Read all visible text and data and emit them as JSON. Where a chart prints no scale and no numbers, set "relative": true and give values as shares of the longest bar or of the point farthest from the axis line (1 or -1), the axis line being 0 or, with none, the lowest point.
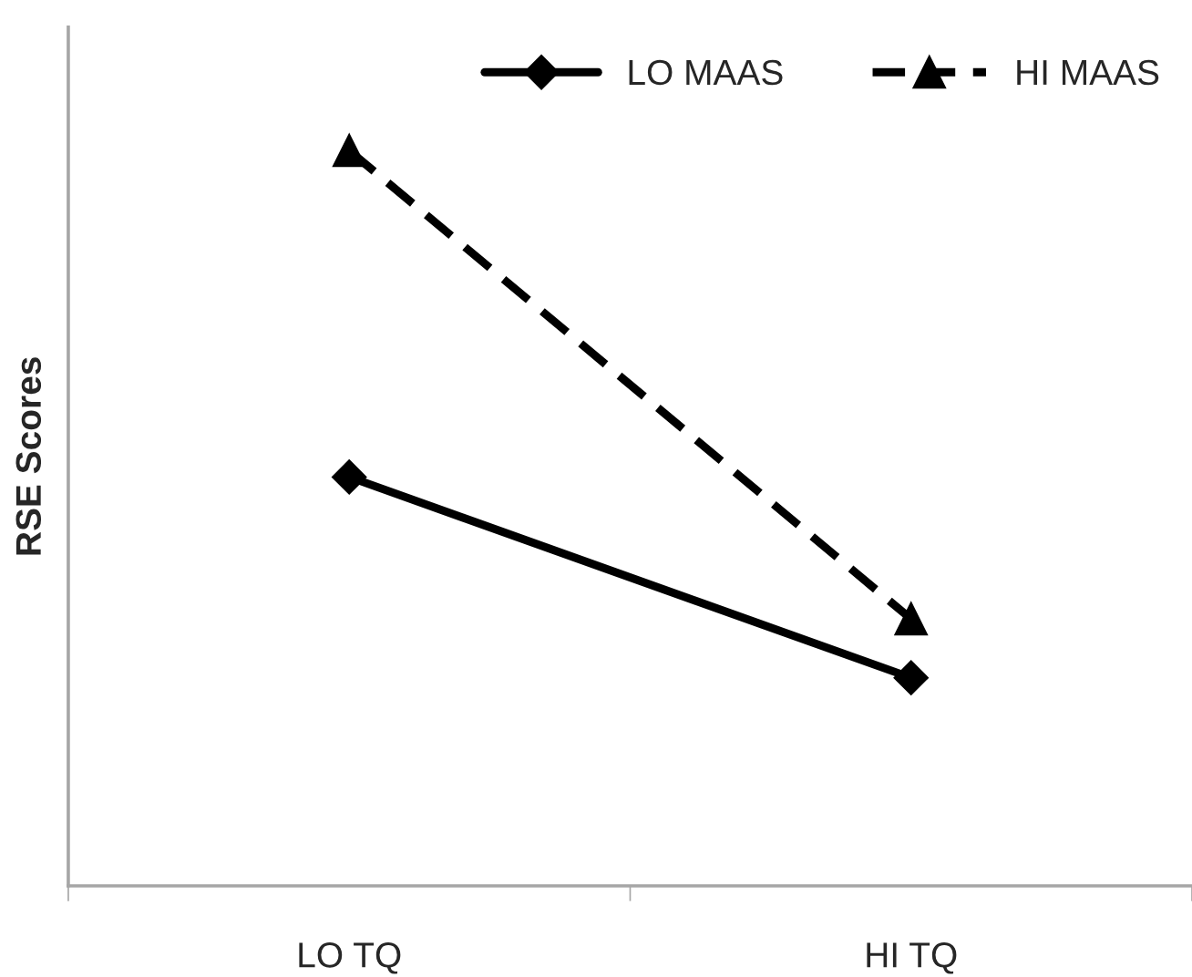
{
  "chart_data": {
    "type": "line",
    "ylabel": "RSE Scores",
    "categories": [
      "LO TQ",
      "HI TQ"
    ],
    "relative": true,
    "legend": "top right",
    "grid": false,
    "series": [
      {
        "name": "LO MAAS",
        "color": "#000000",
        "values": [
          0.556,
          0.283
        ],
        "marker": "diamond",
        "line_style": "solid"
      },
      {
        "name": "HI MAAS",
        "color": "#000000",
        "values": [
          1,
          0.363
        ],
        "marker": "triangle",
        "line_style": "dashed"
      }
    ]
  }
}
